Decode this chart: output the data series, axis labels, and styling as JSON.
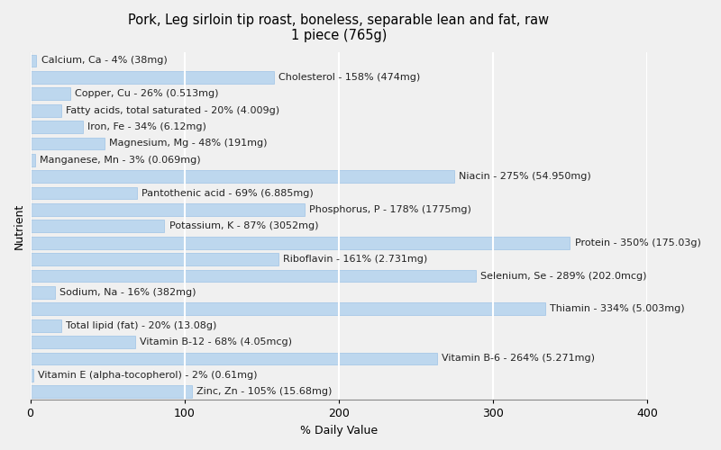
{
  "title": "Pork, Leg sirloin tip roast, boneless, separable lean and fat, raw\n1 piece (765g)",
  "xlabel": "% Daily Value",
  "ylabel": "Nutrient",
  "nutrients": [
    "Calcium, Ca - 4% (38mg)",
    "Cholesterol - 158% (474mg)",
    "Copper, Cu - 26% (0.513mg)",
    "Fatty acids, total saturated - 20% (4.009g)",
    "Iron, Fe - 34% (6.12mg)",
    "Magnesium, Mg - 48% (191mg)",
    "Manganese, Mn - 3% (0.069mg)",
    "Niacin - 275% (54.950mg)",
    "Pantothenic acid - 69% (6.885mg)",
    "Phosphorus, P - 178% (1775mg)",
    "Potassium, K - 87% (3052mg)",
    "Protein - 350% (175.03g)",
    "Riboflavin - 161% (2.731mg)",
    "Selenium, Se - 289% (202.0mcg)",
    "Sodium, Na - 16% (382mg)",
    "Thiamin - 334% (5.003mg)",
    "Total lipid (fat) - 20% (13.08g)",
    "Vitamin B-12 - 68% (4.05mcg)",
    "Vitamin B-6 - 264% (5.271mg)",
    "Vitamin E (alpha-tocopherol) - 2% (0.61mg)",
    "Zinc, Zn - 105% (15.68mg)"
  ],
  "values": [
    4,
    158,
    26,
    20,
    34,
    48,
    3,
    275,
    69,
    178,
    87,
    350,
    161,
    289,
    16,
    334,
    20,
    68,
    264,
    2,
    105
  ],
  "bar_color": "#bdd7ee",
  "bar_edge_color": "#9dc3e6",
  "background_color": "#f0f0f0",
  "plot_background_color": "#f0f0f0",
  "xlim": [
    0,
    400
  ],
  "xticks": [
    0,
    100,
    200,
    300,
    400
  ],
  "grid_color": "#ffffff",
  "title_fontsize": 10.5,
  "label_fontsize": 8.0,
  "tick_fontsize": 9,
  "ylabel_fontsize": 9
}
